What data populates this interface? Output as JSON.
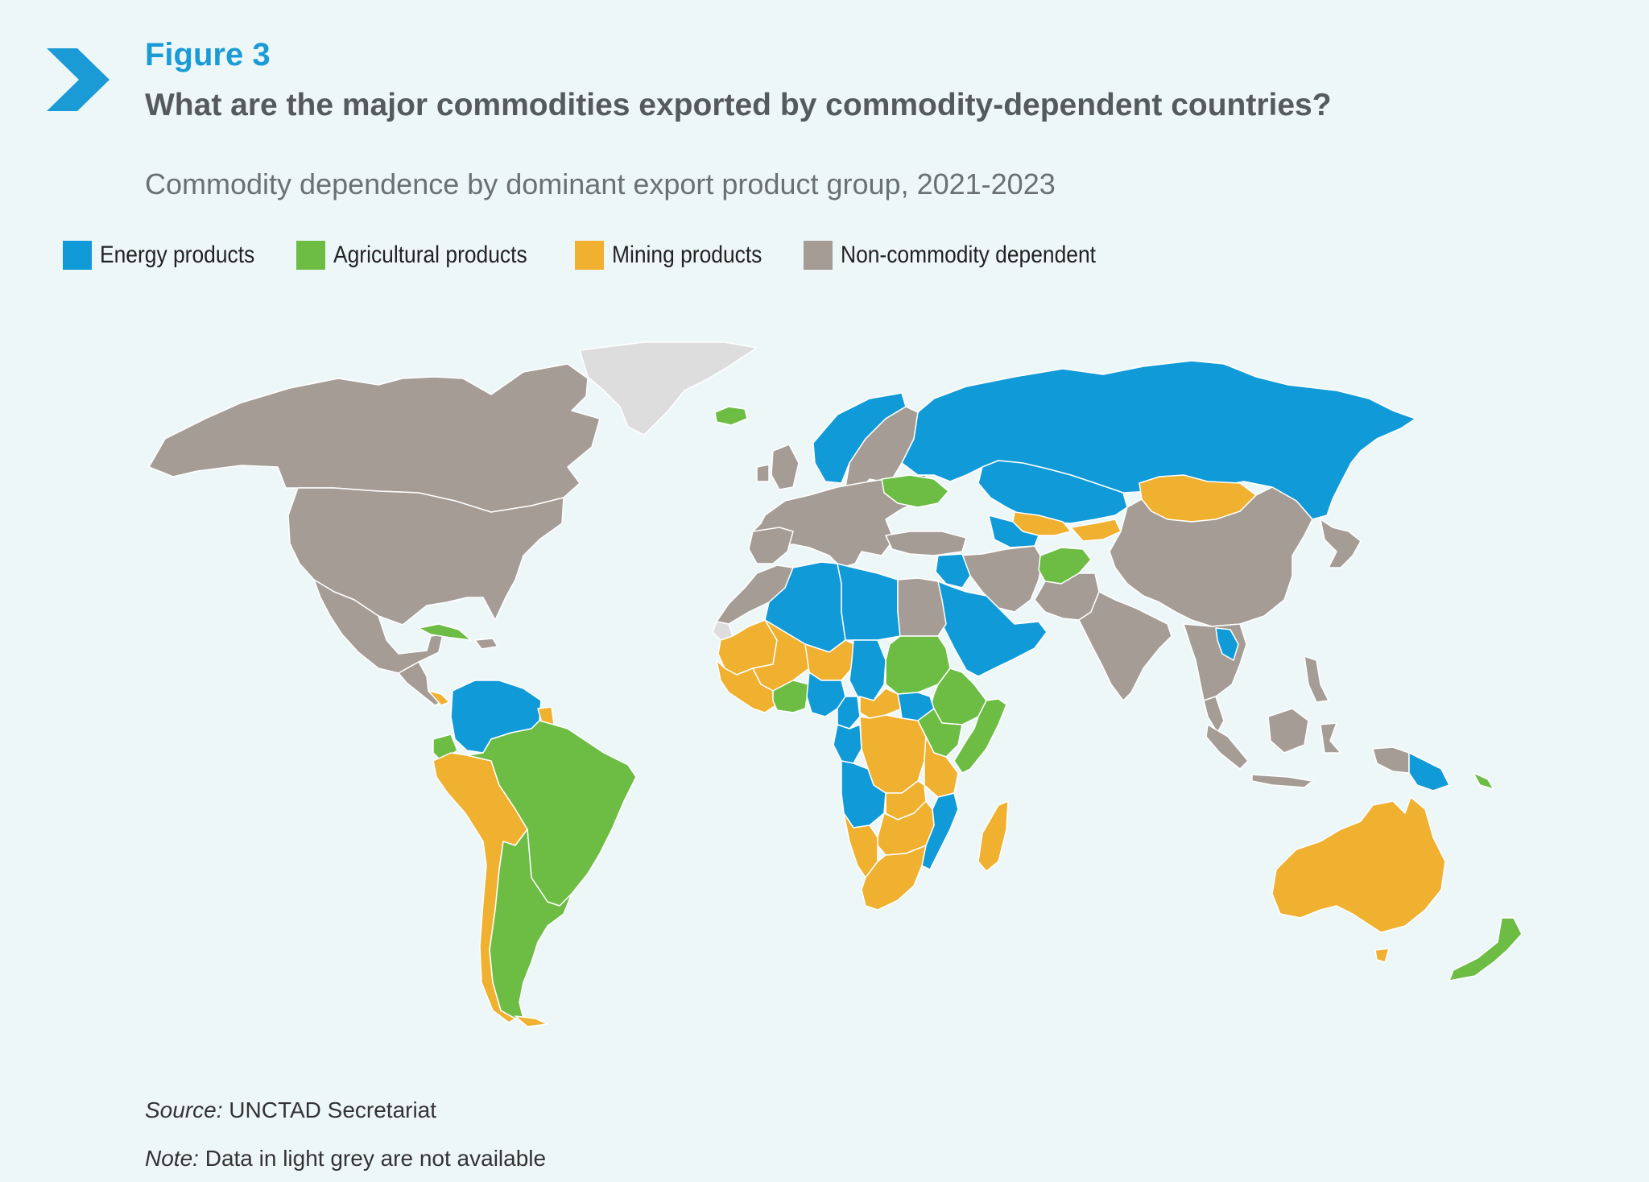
{
  "header": {
    "figure_label": "Figure 3",
    "title": "What are the major commodities exported by commodity-dependent countries?",
    "subtitle": "Commodity dependence by dominant export product group, 2021-2023",
    "accent_color": "#1a9bd6"
  },
  "legend": {
    "items": [
      {
        "label": "Energy products",
        "color": "#119ad8"
      },
      {
        "label": "Agricultural products",
        "color": "#6dbd45"
      },
      {
        "label": "Mining products",
        "color": "#f0b030"
      },
      {
        "label": "Non-commodity dependent",
        "color": "#a59c96"
      }
    ],
    "no_data_color": "#dddddd"
  },
  "map": {
    "ocean_color": "#eef7f8",
    "regions": [
      {
        "name": "Canada",
        "category": "Non-commodity dependent"
      },
      {
        "name": "United States",
        "category": "Non-commodity dependent"
      },
      {
        "name": "Mexico",
        "category": "Non-commodity dependent"
      },
      {
        "name": "Greenland",
        "category": "no data"
      },
      {
        "name": "Iceland",
        "category": "Agricultural products"
      },
      {
        "name": "Cuba",
        "category": "Agricultural products"
      },
      {
        "name": "Colombia",
        "category": "Energy products"
      },
      {
        "name": "Venezuela",
        "category": "Energy products"
      },
      {
        "name": "Guyana",
        "category": "Energy products"
      },
      {
        "name": "Suriname",
        "category": "Mining products"
      },
      {
        "name": "Ecuador",
        "category": "Agricultural products"
      },
      {
        "name": "Peru",
        "category": "Mining products"
      },
      {
        "name": "Bolivia",
        "category": "Mining products"
      },
      {
        "name": "Chile",
        "category": "Mining products"
      },
      {
        "name": "Brazil",
        "category": "Agricultural products"
      },
      {
        "name": "Paraguay",
        "category": "Agricultural products"
      },
      {
        "name": "Argentina",
        "category": "Agricultural products"
      },
      {
        "name": "Uruguay",
        "category": "Agricultural products"
      },
      {
        "name": "Norway",
        "category": "Energy products"
      },
      {
        "name": "Europe",
        "category": "Non-commodity dependent"
      },
      {
        "name": "Ukraine",
        "category": "Agricultural products"
      },
      {
        "name": "Russia",
        "category": "Energy products"
      },
      {
        "name": "Kazakhstan",
        "category": "Energy products"
      },
      {
        "name": "Uzbekistan",
        "category": "Mining products"
      },
      {
        "name": "Kyrgyzstan",
        "category": "Mining products"
      },
      {
        "name": "Mongolia",
        "category": "Mining products"
      },
      {
        "name": "Afghanistan",
        "category": "Agricultural products"
      },
      {
        "name": "China",
        "category": "Non-commodity dependent"
      },
      {
        "name": "India",
        "category": "Non-commodity dependent"
      },
      {
        "name": "Iran",
        "category": "Non-commodity dependent"
      },
      {
        "name": "Saudi Arabia",
        "category": "Energy products"
      },
      {
        "name": "Iraq",
        "category": "Energy products"
      },
      {
        "name": "Oman",
        "category": "Energy products"
      },
      {
        "name": "Laos",
        "category": "Energy products"
      },
      {
        "name": "Southeast Asia",
        "category": "Non-commodity dependent"
      },
      {
        "name": "Papua New Guinea",
        "category": "Energy products"
      },
      {
        "name": "Solomon Islands",
        "category": "Agricultural products"
      },
      {
        "name": "Japan",
        "category": "Non-commodity dependent"
      },
      {
        "name": "Australia",
        "category": "Mining products"
      },
      {
        "name": "New Zealand",
        "category": "Agricultural products"
      },
      {
        "name": "Morocco",
        "category": "Non-commodity dependent"
      },
      {
        "name": "Algeria",
        "category": "Energy products"
      },
      {
        "name": "Libya",
        "category": "Energy products"
      },
      {
        "name": "Egypt",
        "category": "Non-commodity dependent"
      },
      {
        "name": "Mauritania",
        "category": "Mining products"
      },
      {
        "name": "Mali",
        "category": "Mining products"
      },
      {
        "name": "Niger",
        "category": "Mining products"
      },
      {
        "name": "Chad",
        "category": "Energy products"
      },
      {
        "name": "Sudan",
        "category": "Agricultural products"
      },
      {
        "name": "Ethiopia",
        "category": "Agricultural products"
      },
      {
        "name": "Somalia",
        "category": "Agricultural products"
      },
      {
        "name": "West Africa coast",
        "category": "Mining products"
      },
      {
        "name": "Nigeria",
        "category": "Energy products"
      },
      {
        "name": "Cameroon",
        "category": "Energy products"
      },
      {
        "name": "South Sudan",
        "category": "Energy products"
      },
      {
        "name": "Central African Republic",
        "category": "Mining products"
      },
      {
        "name": "DR Congo",
        "category": "Mining products"
      },
      {
        "name": "Kenya",
        "category": "Agricultural products"
      },
      {
        "name": "Tanzania",
        "category": "Mining products"
      },
      {
        "name": "Angola",
        "category": "Energy products"
      },
      {
        "name": "Zambia",
        "category": "Mining products"
      },
      {
        "name": "Mozambique",
        "category": "Energy products"
      },
      {
        "name": "Namibia",
        "category": "Mining products"
      },
      {
        "name": "Botswana",
        "category": "Mining products"
      },
      {
        "name": "South Africa",
        "category": "Mining products"
      },
      {
        "name": "Madagascar",
        "category": "Mining products"
      }
    ]
  },
  "footer": {
    "source_label": "Source:",
    "source_text": "UNCTAD Secretariat",
    "note_label": "Note:",
    "note_text": "Data in light grey are not available"
  }
}
